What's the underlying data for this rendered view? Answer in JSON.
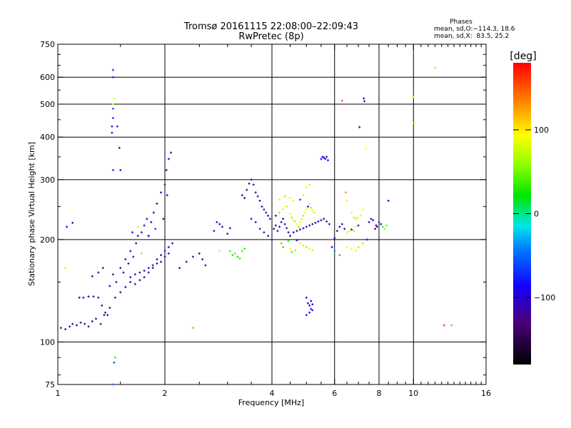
{
  "header": {
    "title_line1": "Tromsø 20161115 22:08:00–22:09:43",
    "title_line2": "RwPretec (8p)"
  },
  "stats": {
    "heading": "Phases",
    "line1": "mean, sd,O:−114.3, 18.6",
    "line2": "mean, sd,X:  83.5, 25.2"
  },
  "colorbar": {
    "unit_label": "[deg]",
    "range": [
      -180,
      180
    ],
    "ticks": [
      {
        "value": 100,
        "label": "100"
      },
      {
        "value": 0,
        "label": "0"
      },
      {
        "value": -100,
        "label": "−100"
      }
    ]
  },
  "chart_data": {
    "type": "scatter",
    "xlabel": "Frequency [MHz]",
    "ylabel": "Stationary phase Virtual Height [km]",
    "x_scale": "log",
    "y_scale": "log",
    "xlim": [
      1,
      16
    ],
    "ylim": [
      75,
      750
    ],
    "xticks": [
      {
        "value": 1,
        "label": "1"
      },
      {
        "value": 2,
        "label": "2"
      },
      {
        "value": 4,
        "label": "4"
      },
      {
        "value": 6,
        "label": "6"
      },
      {
        "value": 8,
        "label": "8"
      },
      {
        "value": 10,
        "label": "10"
      },
      {
        "value": 16,
        "label": "16"
      }
    ],
    "yticks": [
      {
        "value": 75,
        "label": "75"
      },
      {
        "value": 100,
        "label": "100"
      },
      {
        "value": 200,
        "label": "200"
      },
      {
        "value": 300,
        "label": "300"
      },
      {
        "value": 400,
        "label": "400"
      },
      {
        "value": 500,
        "label": "500"
      },
      {
        "value": 600,
        "label": "600"
      },
      {
        "value": 750,
        "label": "750"
      }
    ],
    "x_grid": [
      2,
      4,
      6,
      8,
      10
    ],
    "y_grid": [
      100,
      200,
      300,
      400,
      500,
      600
    ],
    "grid": true,
    "color_by": "phase [deg]",
    "points": [
      [
        1.02,
        110,
        -120
      ],
      [
        1.05,
        109,
        -115
      ],
      [
        1.08,
        111,
        -118
      ],
      [
        1.1,
        113,
        -120
      ],
      [
        1.13,
        112,
        -110
      ],
      [
        1.16,
        114,
        -118
      ],
      [
        1.19,
        113,
        -125
      ],
      [
        1.22,
        111,
        -115
      ],
      [
        1.25,
        115,
        -120
      ],
      [
        1.28,
        117,
        -118
      ],
      [
        1.32,
        113,
        -112
      ],
      [
        1.35,
        120,
        -120
      ],
      [
        1.05,
        165,
        80
      ],
      [
        1.06,
        218,
        -110
      ],
      [
        1.1,
        224,
        -120
      ],
      [
        1.15,
        135,
        -100
      ],
      [
        1.18,
        135,
        -110
      ],
      [
        1.22,
        136,
        -105
      ],
      [
        1.26,
        136,
        -112
      ],
      [
        1.3,
        135,
        -108
      ],
      [
        1.33,
        128,
        -115
      ],
      [
        1.36,
        122,
        -110
      ],
      [
        1.4,
        126,
        -118
      ],
      [
        1.38,
        120,
        -120
      ],
      [
        1.25,
        156,
        -118
      ],
      [
        1.3,
        160,
        -110
      ],
      [
        1.34,
        165,
        -120
      ],
      [
        1.4,
        146,
        -115
      ],
      [
        1.43,
        158,
        -120
      ],
      [
        1.46,
        150,
        -112
      ],
      [
        1.5,
        165,
        -118
      ],
      [
        1.53,
        160,
        -110
      ],
      [
        1.55,
        175,
        -120
      ],
      [
        1.58,
        170,
        -115
      ],
      [
        1.6,
        185,
        -118
      ],
      [
        1.63,
        178,
        -110
      ],
      [
        1.66,
        195,
        -120
      ],
      [
        1.68,
        205,
        -118
      ],
      [
        1.72,
        210,
        -112
      ],
      [
        1.75,
        220,
        -120
      ],
      [
        1.78,
        230,
        -115
      ],
      [
        1.8,
        205,
        -118
      ],
      [
        1.83,
        225,
        -110
      ],
      [
        1.86,
        240,
        -120
      ],
      [
        1.45,
        135,
        -110
      ],
      [
        1.5,
        140,
        -118
      ],
      [
        1.55,
        145,
        -115
      ],
      [
        1.6,
        150,
        -120
      ],
      [
        1.65,
        148,
        -112
      ],
      [
        1.7,
        152,
        -118
      ],
      [
        1.75,
        155,
        -110
      ],
      [
        1.8,
        160,
        -120
      ],
      [
        1.85,
        165,
        -115
      ],
      [
        1.9,
        170,
        -118
      ],
      [
        1.95,
        172,
        -112
      ],
      [
        2.0,
        178,
        -120
      ],
      [
        2.05,
        182,
        -115
      ],
      [
        1.6,
        155,
        -100
      ],
      [
        1.65,
        158,
        -105
      ],
      [
        1.7,
        160,
        -110
      ],
      [
        1.75,
        162,
        -100
      ],
      [
        1.8,
        165,
        -108
      ],
      [
        1.85,
        168,
        -112
      ],
      [
        1.9,
        175,
        -105
      ],
      [
        1.95,
        180,
        -110
      ],
      [
        2.0,
        185,
        -102
      ],
      [
        2.05,
        190,
        -110
      ],
      [
        2.1,
        195,
        -105
      ],
      [
        2.2,
        165,
        -110
      ],
      [
        2.3,
        172,
        -115
      ],
      [
        2.4,
        178,
        -118
      ],
      [
        2.5,
        182,
        -120
      ],
      [
        2.55,
        175,
        -110
      ],
      [
        2.6,
        168,
        -112
      ],
      [
        1.9,
        255,
        -115
      ],
      [
        1.95,
        275,
        -110
      ],
      [
        2.0,
        290,
        -120
      ],
      [
        2.02,
        320,
        -115
      ],
      [
        2.05,
        345,
        -118
      ],
      [
        2.08,
        360,
        -120
      ],
      [
        2.03,
        270,
        -112
      ],
      [
        1.98,
        230,
        -118
      ],
      [
        1.62,
        210,
        -90
      ],
      [
        1.68,
        218,
        70
      ],
      [
        1.72,
        182,
        60
      ],
      [
        1.8,
        205,
        -110
      ],
      [
        1.88,
        215,
        -70
      ],
      [
        1.42,
        412,
        -80
      ],
      [
        1.42,
        430,
        -95
      ],
      [
        1.43,
        455,
        -70
      ],
      [
        1.43,
        485,
        -60
      ],
      [
        1.43,
        500,
        65
      ],
      [
        1.44,
        520,
        80
      ],
      [
        1.43,
        600,
        -85
      ],
      [
        1.43,
        630,
        -75
      ],
      [
        1.47,
        430,
        -110
      ],
      [
        1.49,
        372,
        -110
      ],
      [
        1.43,
        320,
        -70
      ],
      [
        1.5,
        320,
        -110
      ],
      [
        1.44,
        87,
        -60
      ],
      [
        1.45,
        90,
        30
      ],
      [
        1.43,
        75,
        -50
      ],
      [
        2.75,
        212,
        -100
      ],
      [
        2.8,
        225,
        -110
      ],
      [
        2.85,
        222,
        -105
      ],
      [
        2.9,
        218,
        -110
      ],
      [
        2.4,
        110,
        40
      ],
      [
        2.85,
        185,
        80
      ],
      [
        3.0,
        208,
        -110
      ],
      [
        3.05,
        216,
        -100
      ],
      [
        3.05,
        185,
        40
      ],
      [
        3.1,
        180,
        30
      ],
      [
        3.15,
        182,
        50
      ],
      [
        3.2,
        178,
        25
      ],
      [
        3.25,
        176,
        35
      ],
      [
        3.3,
        185,
        40
      ],
      [
        3.35,
        188,
        30
      ],
      [
        3.3,
        270,
        -115
      ],
      [
        3.35,
        265,
        -110
      ],
      [
        3.4,
        280,
        -118
      ],
      [
        3.45,
        292,
        -112
      ],
      [
        3.5,
        300,
        -110
      ],
      [
        3.55,
        290,
        -115
      ],
      [
        3.6,
        275,
        -120
      ],
      [
        3.65,
        268,
        -112
      ],
      [
        3.7,
        260,
        -118
      ],
      [
        3.75,
        250,
        -110
      ],
      [
        3.8,
        245,
        -115
      ],
      [
        3.85,
        240,
        -120
      ],
      [
        3.9,
        235,
        -112
      ],
      [
        3.95,
        230,
        -118
      ],
      [
        3.5,
        230,
        -110
      ],
      [
        3.6,
        225,
        -115
      ],
      [
        3.7,
        215,
        -112
      ],
      [
        3.8,
        210,
        -118
      ],
      [
        3.9,
        205,
        -110
      ],
      [
        4.0,
        200,
        -115
      ],
      [
        4.05,
        215,
        -112
      ],
      [
        4.1,
        220,
        -118
      ],
      [
        4.15,
        212,
        -110
      ],
      [
        4.2,
        218,
        -115
      ],
      [
        4.25,
        225,
        -112
      ],
      [
        4.3,
        230,
        -118
      ],
      [
        4.35,
        222,
        -110
      ],
      [
        4.4,
        216,
        -115
      ],
      [
        4.45,
        210,
        -112
      ],
      [
        4.5,
        205,
        -118
      ],
      [
        4.1,
        235,
        -90
      ],
      [
        4.2,
        240,
        60
      ],
      [
        4.3,
        245,
        80
      ],
      [
        4.4,
        250,
        70
      ],
      [
        4.5,
        238,
        90
      ],
      [
        4.55,
        232,
        55
      ],
      [
        4.6,
        228,
        85
      ],
      [
        4.65,
        226,
        70
      ],
      [
        4.7,
        222,
        95
      ],
      [
        4.75,
        218,
        60
      ],
      [
        4.8,
        225,
        80
      ],
      [
        4.85,
        230,
        75
      ],
      [
        4.9,
        235,
        65
      ],
      [
        4.95,
        240,
        90
      ],
      [
        5.0,
        245,
        85
      ],
      [
        5.05,
        250,
        -80
      ],
      [
        5.1,
        255,
        70
      ],
      [
        5.15,
        248,
        60
      ],
      [
        5.2,
        244,
        85
      ],
      [
        5.25,
        240,
        75
      ],
      [
        4.6,
        210,
        -110
      ],
      [
        4.7,
        212,
        -115
      ],
      [
        4.8,
        214,
        -112
      ],
      [
        4.9,
        216,
        -118
      ],
      [
        5.0,
        218,
        -110
      ],
      [
        5.1,
        220,
        -115
      ],
      [
        5.2,
        222,
        -112
      ],
      [
        5.3,
        224,
        -118
      ],
      [
        5.4,
        226,
        -110
      ],
      [
        5.5,
        228,
        -115
      ],
      [
        5.6,
        230,
        -112
      ],
      [
        5.7,
        226,
        -118
      ],
      [
        5.8,
        222,
        -110
      ],
      [
        4.8,
        195,
        80
      ],
      [
        4.9,
        192,
        70
      ],
      [
        5.0,
        190,
        60
      ],
      [
        5.1,
        188,
        85
      ],
      [
        5.2,
        186,
        75
      ],
      [
        4.5,
        188,
        100
      ],
      [
        4.3,
        190,
        140
      ],
      [
        4.7,
        199,
        -90
      ],
      [
        4.2,
        262,
        80
      ],
      [
        4.35,
        268,
        60
      ],
      [
        4.5,
        265,
        90
      ],
      [
        4.6,
        260,
        85
      ],
      [
        4.9,
        270,
        70
      ],
      [
        5.0,
        285,
        85
      ],
      [
        4.8,
        262,
        -60
      ],
      [
        5.1,
        290,
        75
      ],
      [
        4.25,
        195,
        40
      ],
      [
        4.45,
        198,
        30
      ],
      [
        4.55,
        184,
        35
      ],
      [
        4.65,
        186,
        55
      ],
      [
        5.0,
        135,
        -100
      ],
      [
        5.05,
        130,
        -90
      ],
      [
        5.1,
        128,
        -80
      ],
      [
        5.15,
        132,
        -95
      ],
      [
        5.2,
        129,
        -85
      ],
      [
        5.0,
        120,
        -90
      ],
      [
        5.1,
        122,
        -100
      ],
      [
        5.2,
        124,
        -80
      ],
      [
        5.15,
        125,
        -75
      ],
      [
        5.5,
        345,
        -90
      ],
      [
        5.55,
        350,
        -95
      ],
      [
        5.6,
        348,
        -100
      ],
      [
        5.65,
        345,
        -85
      ],
      [
        5.7,
        350,
        -110
      ],
      [
        5.75,
        342,
        -105
      ],
      [
        5.8,
        200,
        150
      ],
      [
        5.9,
        190,
        -80
      ],
      [
        6.0,
        202,
        -110
      ],
      [
        6.1,
        212,
        -115
      ],
      [
        6.2,
        218,
        -112
      ],
      [
        6.3,
        222,
        -118
      ],
      [
        6.4,
        215,
        -110
      ],
      [
        6.5,
        210,
        90
      ],
      [
        6.6,
        212,
        80
      ],
      [
        6.7,
        214,
        -90
      ],
      [
        6.8,
        212,
        60
      ],
      [
        6.9,
        218,
        95
      ],
      [
        7.0,
        220,
        -80
      ],
      [
        6.45,
        275,
        130
      ],
      [
        6.5,
        260,
        90
      ],
      [
        6.7,
        240,
        100
      ],
      [
        6.8,
        232,
        70
      ],
      [
        6.9,
        230,
        80
      ],
      [
        7.1,
        235,
        80
      ],
      [
        7.2,
        245,
        90
      ],
      [
        7.5,
        225,
        -100
      ],
      [
        7.6,
        230,
        -110
      ],
      [
        7.7,
        228,
        -115
      ],
      [
        7.8,
        215,
        -120
      ],
      [
        7.85,
        220,
        -118
      ],
      [
        7.9,
        218,
        -110
      ],
      [
        8.0,
        225,
        -115
      ],
      [
        8.1,
        222,
        -100
      ],
      [
        8.2,
        218,
        40
      ],
      [
        8.3,
        215,
        60
      ],
      [
        8.4,
        220,
        50
      ],
      [
        8.5,
        260,
        -110
      ],
      [
        6.0,
        185,
        -40
      ],
      [
        6.2,
        180,
        150
      ],
      [
        6.5,
        190,
        90
      ],
      [
        6.7,
        188,
        95
      ],
      [
        6.9,
        186,
        85
      ],
      [
        7.0,
        190,
        70
      ],
      [
        7.2,
        195,
        60
      ],
      [
        7.4,
        200,
        -100
      ],
      [
        6.3,
        512,
        150
      ],
      [
        7.05,
        428,
        -110
      ],
      [
        7.25,
        520,
        -110
      ],
      [
        7.28,
        510,
        -100
      ],
      [
        7.35,
        370,
        90
      ],
      [
        6.95,
        232,
        80
      ],
      [
        10.0,
        525,
        100
      ],
      [
        10.05,
        440,
        90
      ],
      [
        11.5,
        640,
        110
      ],
      [
        12.2,
        112,
        160
      ],
      [
        12.8,
        112,
        40
      ]
    ]
  }
}
